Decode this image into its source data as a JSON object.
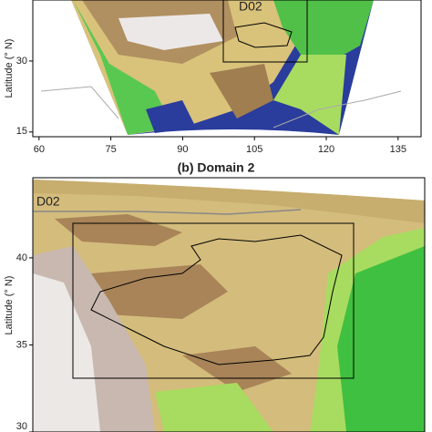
{
  "panels": [
    {
      "box_label": "D02",
      "y_label": "Latitude (° N)",
      "xlim": [
        58.7,
        139.8
      ],
      "xticks": [
        60,
        75,
        90,
        105,
        120,
        135
      ],
      "ylim": [
        14,
        42.9
      ],
      "yticks": [
        30,
        15
      ]
    },
    {
      "title": "(b) Domain 2",
      "box_label": "D02",
      "y_label": "Latitude (° N)",
      "ylim": [
        30,
        44.6
      ],
      "yticks": [
        40,
        35,
        30
      ]
    }
  ]
}
